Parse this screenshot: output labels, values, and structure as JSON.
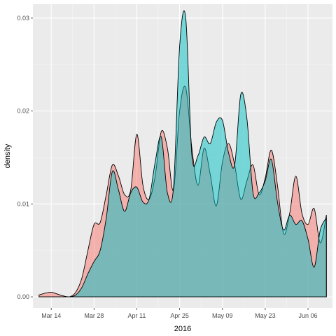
{
  "chart_data": {
    "type": "area",
    "title": "",
    "xlabel": "2016",
    "ylabel": "density",
    "x_tick_labels": [
      "Mar 14",
      "Mar 28",
      "Apr 11",
      "Apr 25",
      "May 09",
      "May 23",
      "Jun 06"
    ],
    "x_tick_dates": [
      "2016-03-14",
      "2016-03-28",
      "2016-04-11",
      "2016-04-25",
      "2016-05-09",
      "2016-05-23",
      "2016-06-06"
    ],
    "y_ticks": [
      0.0,
      0.01,
      0.02,
      0.03
    ],
    "y_tick_labels": [
      "0.00",
      "0.01",
      "0.02",
      "0.03"
    ],
    "xlim": [
      "2016-03-08",
      "2016-06-14"
    ],
    "ylim": [
      -0.0012,
      0.0315
    ],
    "grid": true,
    "legend": "none",
    "colors": {
      "panel_bg": "#ebebeb",
      "grid_major": "#ffffff",
      "grid_minor": "#f5f5f5",
      "series_1_fill": "#f8766d",
      "series_2_fill": "#00bfc4",
      "outline": "#000000"
    },
    "fill_opacity": 0.5,
    "series": [
      {
        "x": [
          "2016-03-10",
          "2016-03-12",
          "2016-03-14",
          "2016-03-16",
          "2016-03-18",
          "2016-03-20",
          "2016-03-22",
          "2016-03-24",
          "2016-03-26",
          "2016-03-28",
          "2016-03-30",
          "2016-04-01",
          "2016-04-03",
          "2016-04-05",
          "2016-04-07",
          "2016-04-09",
          "2016-04-11",
          "2016-04-13",
          "2016-04-15",
          "2016-04-17",
          "2016-04-19",
          "2016-04-21",
          "2016-04-23",
          "2016-04-25",
          "2016-04-27",
          "2016-04-29",
          "2016-05-01",
          "2016-05-03",
          "2016-05-05",
          "2016-05-07",
          "2016-05-09",
          "2016-05-11",
          "2016-05-13",
          "2016-05-15",
          "2016-05-17",
          "2016-05-19",
          "2016-05-21",
          "2016-05-23",
          "2016-05-25",
          "2016-05-27",
          "2016-05-29",
          "2016-05-31",
          "2016-06-02",
          "2016-06-04",
          "2016-06-06",
          "2016-06-08",
          "2016-06-10",
          "2016-06-12"
        ],
        "values": [
          0.0002,
          0.0004,
          0.0005,
          0.0003,
          0.0001,
          0.0,
          0.0005,
          0.002,
          0.005,
          0.0078,
          0.008,
          0.011,
          0.0142,
          0.013,
          0.011,
          0.0115,
          0.0175,
          0.012,
          0.0105,
          0.013,
          0.0178,
          0.016,
          0.0115,
          0.02,
          0.0225,
          0.016,
          0.012,
          0.016,
          0.0132,
          0.0098,
          0.0145,
          0.0165,
          0.0142,
          0.0105,
          0.0125,
          0.0142,
          0.011,
          0.0128,
          0.0158,
          0.012,
          0.0068,
          0.009,
          0.013,
          0.009,
          0.0078,
          0.0095,
          0.0058,
          0.0088
        ]
      },
      {
        "x": [
          "2016-03-10",
          "2016-03-12",
          "2016-03-14",
          "2016-03-16",
          "2016-03-18",
          "2016-03-20",
          "2016-03-22",
          "2016-03-24",
          "2016-03-26",
          "2016-03-28",
          "2016-03-30",
          "2016-04-01",
          "2016-04-03",
          "2016-04-05",
          "2016-04-07",
          "2016-04-09",
          "2016-04-11",
          "2016-04-13",
          "2016-04-15",
          "2016-04-17",
          "2016-04-19",
          "2016-04-21",
          "2016-04-23",
          "2016-04-25",
          "2016-04-27",
          "2016-04-29",
          "2016-05-01",
          "2016-05-03",
          "2016-05-05",
          "2016-05-07",
          "2016-05-09",
          "2016-05-11",
          "2016-05-13",
          "2016-05-15",
          "2016-05-17",
          "2016-05-19",
          "2016-05-21",
          "2016-05-23",
          "2016-05-25",
          "2016-05-27",
          "2016-05-29",
          "2016-05-31",
          "2016-06-02",
          "2016-06-04",
          "2016-06-06",
          "2016-06-08",
          "2016-06-10",
          "2016-06-12"
        ],
        "values": [
          0.0,
          0.0,
          0.0,
          0.0,
          0.0,
          0.0,
          0.0002,
          0.001,
          0.0025,
          0.0038,
          0.005,
          0.0085,
          0.0135,
          0.0115,
          0.0092,
          0.0112,
          0.0118,
          0.0102,
          0.0105,
          0.0145,
          0.0172,
          0.0112,
          0.0118,
          0.027,
          0.03,
          0.0152,
          0.0152,
          0.0172,
          0.0165,
          0.0188,
          0.019,
          0.0155,
          0.0142,
          0.0218,
          0.0192,
          0.0112,
          0.0112,
          0.0125,
          0.0148,
          0.0102,
          0.0072,
          0.0088,
          0.0078,
          0.0082,
          0.0062,
          0.0032,
          0.0072,
          0.0085
        ]
      }
    ]
  }
}
